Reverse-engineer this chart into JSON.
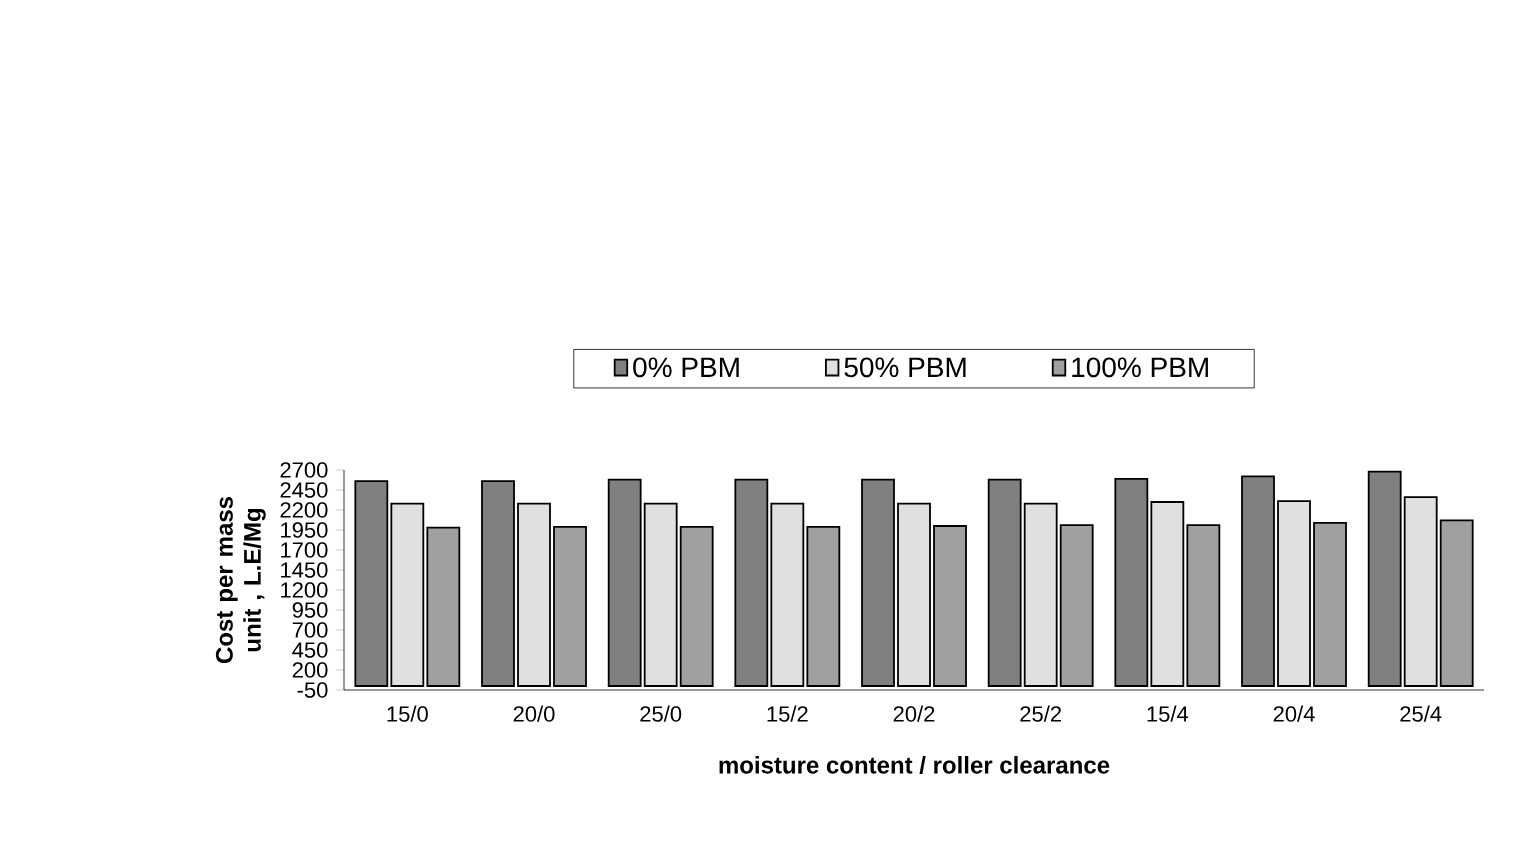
{
  "chart_data": {
    "type": "bar",
    "xlabel": "moisture content / roller clearance",
    "ylabel": "Cost per mass unit , L.E/Mg",
    "categories": [
      "15/0",
      "20/0",
      "25/0",
      "15/2",
      "20/2",
      "25/2",
      "15/4",
      "20/4",
      "25/4"
    ],
    "series": [
      {
        "name": "0% PBM",
        "color": "#808080",
        "values": [
          2560,
          2560,
          2580,
          2580,
          2580,
          2580,
          2590,
          2620,
          2680
        ]
      },
      {
        "name": "50% PBM",
        "color": "#e0e0e0",
        "values": [
          2280,
          2280,
          2280,
          2280,
          2280,
          2280,
          2300,
          2310,
          2360
        ]
      },
      {
        "name": "100% PBM",
        "color": "#a0a0a0",
        "values": [
          1980,
          1990,
          1990,
          1990,
          2000,
          2010,
          2010,
          2040,
          2070
        ]
      }
    ],
    "ylim": [
      -50,
      2700
    ],
    "yticks": [
      -50,
      200,
      450,
      700,
      950,
      1200,
      1450,
      1700,
      1950,
      2200,
      2450,
      2700
    ],
    "grid": false,
    "legend": "top"
  }
}
